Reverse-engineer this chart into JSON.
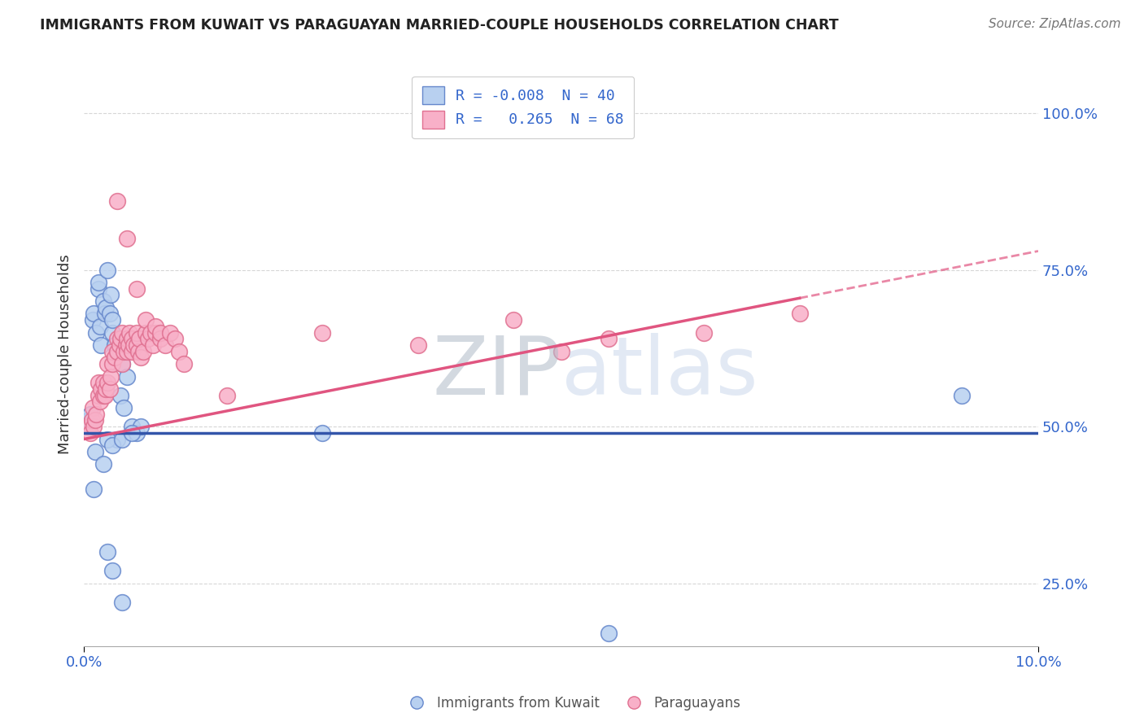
{
  "title": "IMMIGRANTS FROM KUWAIT VS PARAGUAYAN MARRIED-COUPLE HOUSEHOLDS CORRELATION CHART",
  "source": "Source: ZipAtlas.com",
  "ylabel": "Married-couple Households",
  "xmin": 0.0,
  "xmax": 10.0,
  "ymin": 15.0,
  "ymax": 108.0,
  "yticks": [
    25.0,
    50.0,
    75.0,
    100.0
  ],
  "ytick_labels": [
    "25.0%",
    "50.0%",
    "75.0%",
    "100.0%"
  ],
  "blue_line_color": "#3355aa",
  "pink_line_color": "#e05580",
  "blue_scatter_face": "#b8d0f0",
  "blue_scatter_edge": "#6688cc",
  "pink_scatter_face": "#f8b0c8",
  "pink_scatter_edge": "#e07090",
  "grid_color": "#cccccc",
  "watermark_zip": "#b0b8c8",
  "watermark_atlas": "#c0d0e8",
  "legend_r1": "R = -0.008  N = 40",
  "legend_r2": "R =   0.265  N = 68",
  "legend_blue_face": "#b8d0f0",
  "legend_pink_face": "#f8b0c8",
  "blue_line_y": 49.0,
  "pink_line_x0": 0.0,
  "pink_line_y0": 48.0,
  "pink_line_x1": 10.0,
  "pink_line_y1": 78.0,
  "pink_solid_end": 7.5,
  "kuwait_x": [
    0.05,
    0.07,
    0.09,
    0.1,
    0.12,
    0.13,
    0.15,
    0.15,
    0.17,
    0.18,
    0.2,
    0.22,
    0.23,
    0.25,
    0.27,
    0.28,
    0.3,
    0.3,
    0.32,
    0.35,
    0.38,
    0.4,
    0.42,
    0.45,
    0.5,
    0.55,
    0.6,
    0.35,
    0.2,
    0.25,
    0.3,
    0.4,
    0.5,
    0.25,
    0.3,
    0.4,
    2.5,
    5.5,
    9.2,
    0.1
  ],
  "kuwait_y": [
    51,
    52,
    67,
    68,
    46,
    65,
    72,
    73,
    66,
    63,
    70,
    68,
    69,
    75,
    68,
    71,
    65,
    67,
    63,
    62,
    55,
    60,
    53,
    58,
    50,
    49,
    50,
    48,
    44,
    48,
    47,
    48,
    49,
    30,
    27,
    22,
    49,
    17,
    55,
    40
  ],
  "parag_x": [
    0.05,
    0.07,
    0.08,
    0.09,
    0.1,
    0.12,
    0.13,
    0.15,
    0.15,
    0.17,
    0.18,
    0.2,
    0.2,
    0.22,
    0.23,
    0.25,
    0.25,
    0.27,
    0.28,
    0.3,
    0.3,
    0.32,
    0.35,
    0.35,
    0.37,
    0.38,
    0.4,
    0.4,
    0.42,
    0.44,
    0.45,
    0.45,
    0.47,
    0.48,
    0.5,
    0.5,
    0.52,
    0.55,
    0.55,
    0.57,
    0.58,
    0.6,
    0.62,
    0.65,
    0.65,
    0.67,
    0.7,
    0.72,
    0.75,
    0.75,
    0.8,
    0.8,
    0.85,
    0.9,
    0.95,
    1.0,
    1.05,
    2.5,
    3.5,
    4.5,
    5.0,
    5.5,
    6.5,
    7.5,
    1.5,
    0.35,
    0.45,
    0.55
  ],
  "parag_y": [
    50,
    49,
    51,
    53,
    50,
    51,
    52,
    55,
    57,
    54,
    56,
    55,
    57,
    55,
    56,
    57,
    60,
    56,
    58,
    60,
    62,
    61,
    62,
    64,
    63,
    64,
    60,
    65,
    62,
    63,
    62,
    64,
    63,
    65,
    62,
    64,
    63,
    63,
    65,
    62,
    64,
    61,
    62,
    65,
    67,
    64,
    65,
    63,
    65,
    66,
    64,
    65,
    63,
    65,
    64,
    62,
    60,
    65,
    63,
    67,
    62,
    64,
    65,
    68,
    55,
    86,
    80,
    72
  ]
}
